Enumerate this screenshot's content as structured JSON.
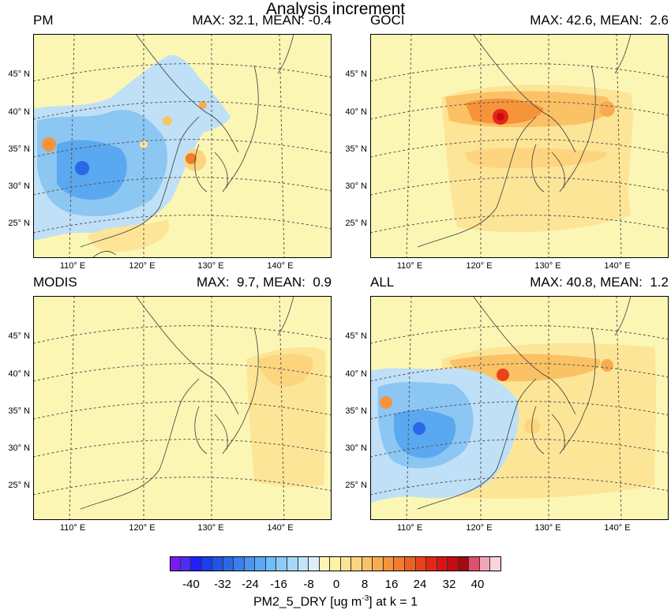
{
  "title": "Analysis increment",
  "panels": [
    {
      "label": "PM",
      "stats": "MAX: 32.1, MEAN: -0.4"
    },
    {
      "label": "GOCI",
      "stats": "MAX: 42.6, MEAN:  2.6"
    },
    {
      "label": "MODIS",
      "stats": "MAX:  9.7, MEAN:  0.9"
    },
    {
      "label": "ALL",
      "stats": "MAX: 40.8, MEAN:  1.2"
    }
  ],
  "lat_labels": [
    "45° N",
    "40° N",
    "35° N",
    "30° N",
    "25° N"
  ],
  "lon_labels": [
    "110° E",
    "120° E",
    "130° E",
    "140° E"
  ],
  "colorbar": {
    "ticks": [
      "-40",
      "-32",
      "-24",
      "-16",
      "-8",
      "0",
      "8",
      "16",
      "24",
      "32",
      "40"
    ],
    "title_pre": "PM2_5_DRY [ug m",
    "title_sup": "-3",
    "title_post": "] at k = 1",
    "colors": [
      "#7a1bf0",
      "#4f2bf5",
      "#2020ff",
      "#1a3ff0",
      "#2154e6",
      "#2a68e8",
      "#3a7fee",
      "#4b94f2",
      "#5aa8f6",
      "#6fbcf8",
      "#8bcbf9",
      "#a6d8fa",
      "#c2e4fb",
      "#ddeefa",
      "#fbf6b4",
      "#fdf3a4",
      "#fde597",
      "#fdd57e",
      "#fbc265",
      "#f9ac4f",
      "#f6943b",
      "#f27b2c",
      "#ee6022",
      "#ea431b",
      "#e52617",
      "#da1414",
      "#c40c12",
      "#a50a10",
      "#e24f6a",
      "#f3a7b6",
      "#fbd3dc"
    ]
  }
}
